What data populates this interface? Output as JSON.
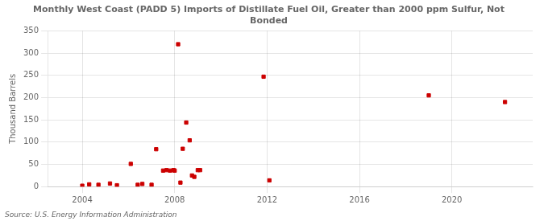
{
  "chart_data": {
    "type": "scatter",
    "title": "Monthly West Coast (PADD 5) Imports of Distillate Fuel Oil, Greater than 2000 ppm Sulfur, Not\nBonded",
    "ylabel": "Thousand Barrels",
    "source": "Source: U.S. Energy Information Administration",
    "color": "#cc0000",
    "marker": "square",
    "grid": true,
    "xlim": [
      2002.5,
      2023.5
    ],
    "xticks": [
      2004,
      2008,
      2012,
      2016,
      2020
    ],
    "ylim": [
      0,
      350
    ],
    "yticks": [
      0,
      50,
      100,
      150,
      200,
      250,
      300,
      350
    ],
    "x": [
      2004.0,
      2004.3,
      2004.7,
      2005.2,
      2005.5,
      2006.1,
      2006.4,
      2006.6,
      2007.0,
      2007.2,
      2007.5,
      2007.65,
      2007.8,
      2007.95,
      2008.0,
      2008.15,
      2008.25,
      2008.35,
      2008.5,
      2008.65,
      2008.75,
      2008.85,
      2009.0,
      2009.1,
      2011.85,
      2012.1,
      2019.0,
      2022.3
    ],
    "values": [
      2,
      5,
      4,
      7,
      3,
      51,
      4,
      6,
      4,
      84,
      36,
      37,
      36,
      37,
      36,
      320,
      9,
      85,
      144,
      104,
      25,
      22,
      37,
      37,
      247,
      14,
      205,
      190
    ]
  }
}
